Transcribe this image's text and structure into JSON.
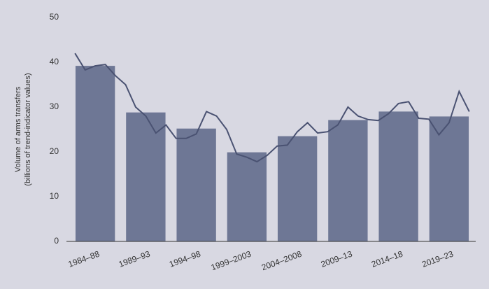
{
  "chart_data": {
    "type": "bar",
    "y_label": [
      "Volume of arms transfers",
      "(billions of trend-indicator values)"
    ],
    "categories": [
      "1984–88",
      "1989–93",
      "1994–98",
      "1999–2003",
      "2004–2008",
      "2009–13",
      "2014–18",
      "2019–23"
    ],
    "values": [
      39.2,
      28.8,
      25.2,
      19.9,
      23.5,
      27.1,
      29.0,
      27.9
    ],
    "color": "#6e7795",
    "line": {
      "color": "#4a5272",
      "x": [
        1984,
        1985,
        1986,
        1987,
        1988,
        1989,
        1990,
        1991,
        1992,
        1993,
        1994,
        1995,
        1996,
        1997,
        1998,
        1999,
        2000,
        2001,
        2002,
        2003,
        2004,
        2005,
        2006,
        2007,
        2008,
        2009,
        2010,
        2011,
        2012,
        2013,
        2014,
        2015,
        2016,
        2017,
        2018,
        2019,
        2020,
        2021,
        2022,
        2023
      ],
      "values": [
        42,
        38.3,
        39.2,
        39.5,
        37,
        35,
        30,
        28,
        24.2,
        26,
        23,
        23,
        24,
        29,
        28,
        25,
        19.5,
        18.8,
        17.8,
        19.2,
        21.3,
        21.5,
        24.5,
        26.5,
        24.2,
        24.5,
        26,
        30,
        28,
        27.2,
        27,
        28.5,
        30.8,
        31.2,
        27.5,
        27.3,
        23.8,
        26.5,
        33.5,
        29
      ]
    },
    "ylim": [
      0,
      50
    ],
    "yticks": [
      0,
      10,
      20,
      30,
      40,
      50
    ],
    "grid": false
  }
}
